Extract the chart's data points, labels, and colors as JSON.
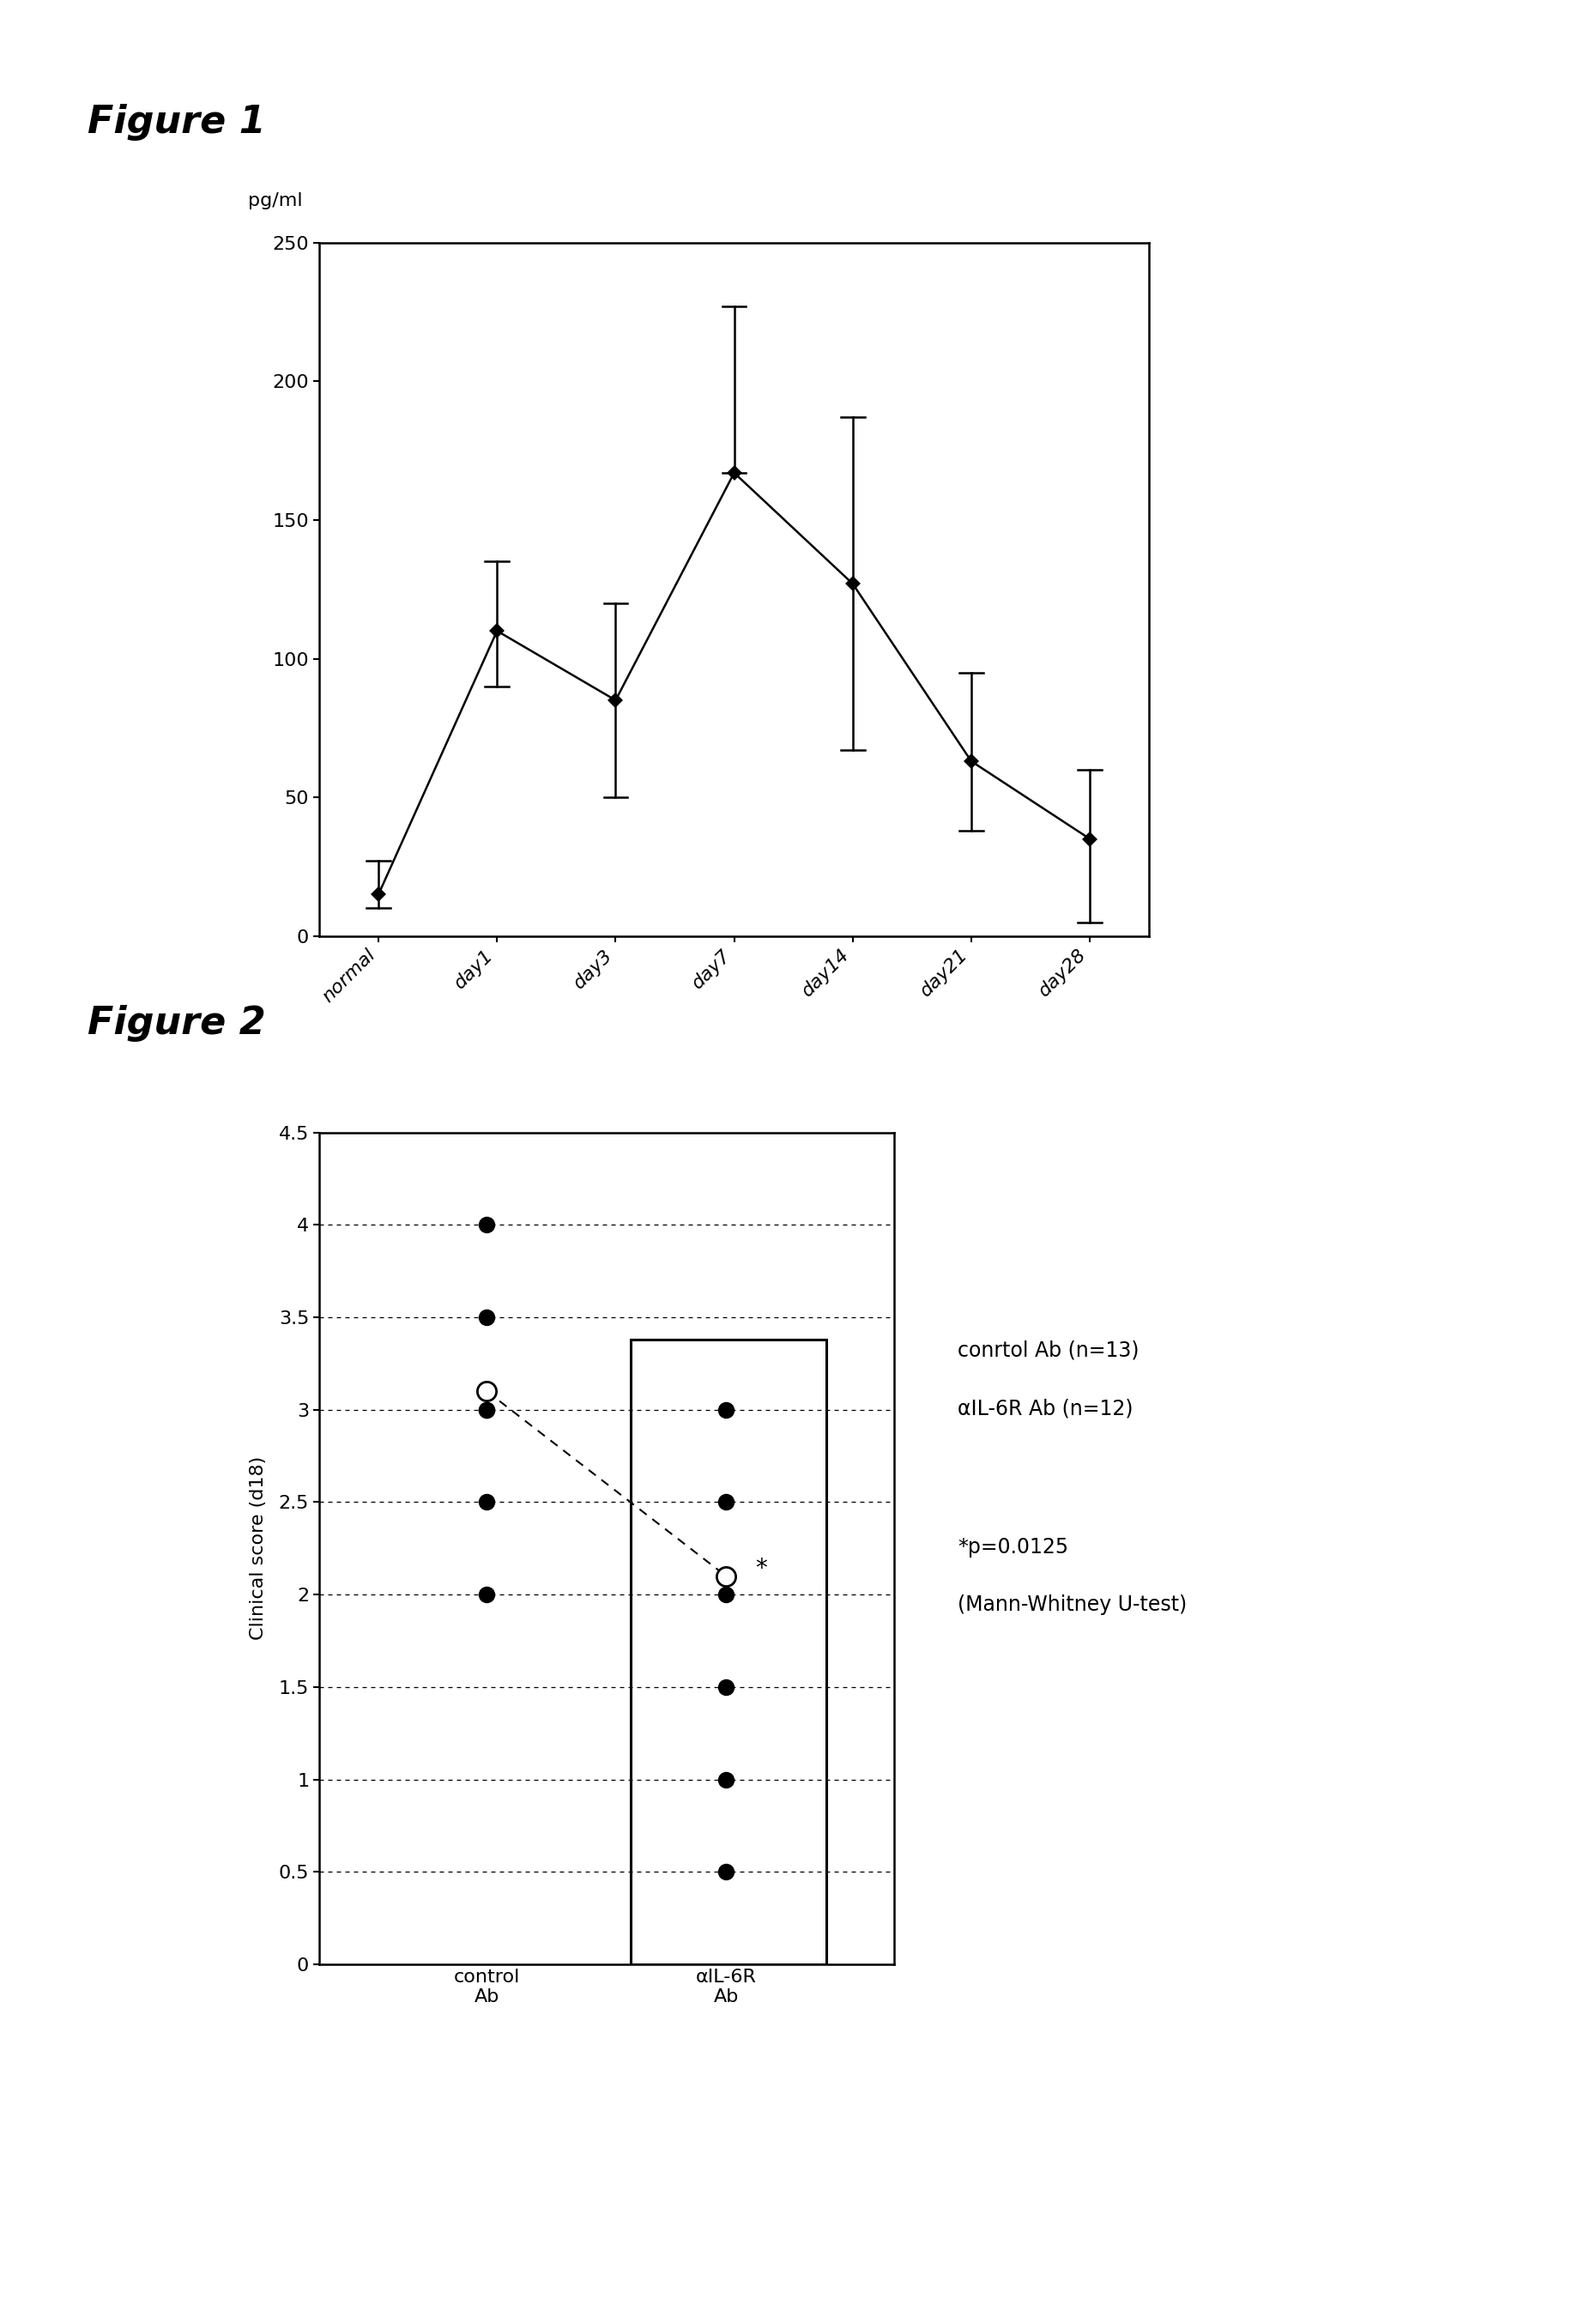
{
  "fig1_title": "Figure 1",
  "fig2_title": "Figure 2",
  "fig1_ylabel": "pg/ml",
  "fig1_xticks": [
    "normal",
    "day1",
    "day3",
    "day7",
    "day14",
    "day21",
    "day28"
  ],
  "fig1_yticks": [
    0,
    50,
    100,
    150,
    200,
    250
  ],
  "fig1_ylim": [
    0,
    250
  ],
  "fig1_x": [
    0,
    1,
    2,
    3,
    4,
    5,
    6
  ],
  "fig1_y": [
    15,
    110,
    85,
    167,
    127,
    63,
    35
  ],
  "fig1_yerr_upper": [
    12,
    25,
    35,
    60,
    60,
    32,
    25
  ],
  "fig1_yerr_lower": [
    5,
    20,
    35,
    0,
    60,
    25,
    30
  ],
  "fig2_ylabel": "Clinical score (d18)",
  "fig2_yticks": [
    0,
    0.5,
    1,
    1.5,
    2,
    2.5,
    3,
    3.5,
    4,
    4.5
  ],
  "fig2_ylim": [
    0,
    4.5
  ],
  "fig2_control_dots": [
    4.0,
    3.5,
    3.0,
    3.0,
    2.5,
    2.0
  ],
  "fig2_control_mean": 3.1,
  "fig2_alpha_dots": [
    3.0,
    2.5,
    2.0,
    1.5,
    1.0,
    0.5
  ],
  "fig2_alpha_mean": 2.1,
  "fig2_xlabel_control": "control\nAb",
  "fig2_xlabel_alpha": "αIL-6R\nAb",
  "fig2_legend_control": "conrtol Ab (n=13)",
  "fig2_legend_alpha": "αIL-6R Ab (n=12)",
  "fig2_stat_line1": "*p=0.0125",
  "fig2_stat_line2": "(Mann-Whitney U-test)",
  "fig2_star_text": "*",
  "background_color": "#ffffff",
  "line_color": "#000000"
}
